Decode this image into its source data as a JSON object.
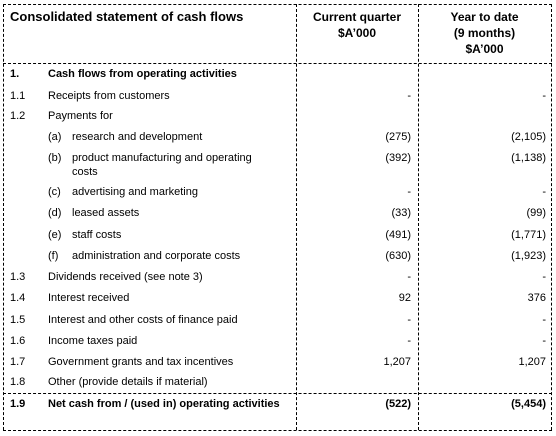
{
  "header": {
    "title": "Consolidated statement of cash flows",
    "current_quarter": [
      "Current quarter",
      "$A’000"
    ],
    "year_to_date": [
      "Year to date",
      "(9 months)",
      "$A’000"
    ]
  },
  "rows": [
    {
      "number": "1.",
      "label": "Cash flows from operating activities",
      "bold": true
    },
    {
      "number": "1.1",
      "label": "Receipts from customers",
      "current": "-",
      "ytd": "-"
    },
    {
      "number": "1.2",
      "label": "Payments for"
    },
    {
      "item": "(a)",
      "label": "research and development",
      "current": "(275)",
      "ytd": "(2,105)"
    },
    {
      "item": "(b)",
      "label": "product manufacturing and operating costs",
      "current": "(392)",
      "ytd": "(1,138)"
    },
    {
      "item": "(c)",
      "label": "advertising and marketing",
      "current": "-",
      "ytd": "-"
    },
    {
      "item": "(d)",
      "label": "leased assets",
      "current": "(33)",
      "ytd": "(99)"
    },
    {
      "item": "(e)",
      "label": "staff costs",
      "current": "(491)",
      "ytd": "(1,771)"
    },
    {
      "item": "(f)",
      "label": "administration and corporate costs",
      "current": "(630)",
      "ytd": "(1,923)"
    },
    {
      "number": "1.3",
      "label": "Dividends received (see note 3)",
      "current": "-",
      "ytd": "-"
    },
    {
      "number": "1.4",
      "label": "Interest received",
      "current": "92",
      "ytd": "376"
    },
    {
      "number": "1.5",
      "label": "Interest and other costs of finance paid",
      "current": "-",
      "ytd": "-"
    },
    {
      "number": "1.6",
      "label": "Income taxes paid",
      "current": "-",
      "ytd": "-"
    },
    {
      "number": "1.7",
      "label": "Government grants and tax incentives",
      "current": "1,207",
      "ytd": "1,207"
    },
    {
      "number": "1.8",
      "label": "Other (provide details if material)"
    },
    {
      "number": "1.9",
      "label": "Net cash from / (used in) operating activities",
      "current": "(522)",
      "ytd": "(5,454)",
      "bold": true
    }
  ]
}
